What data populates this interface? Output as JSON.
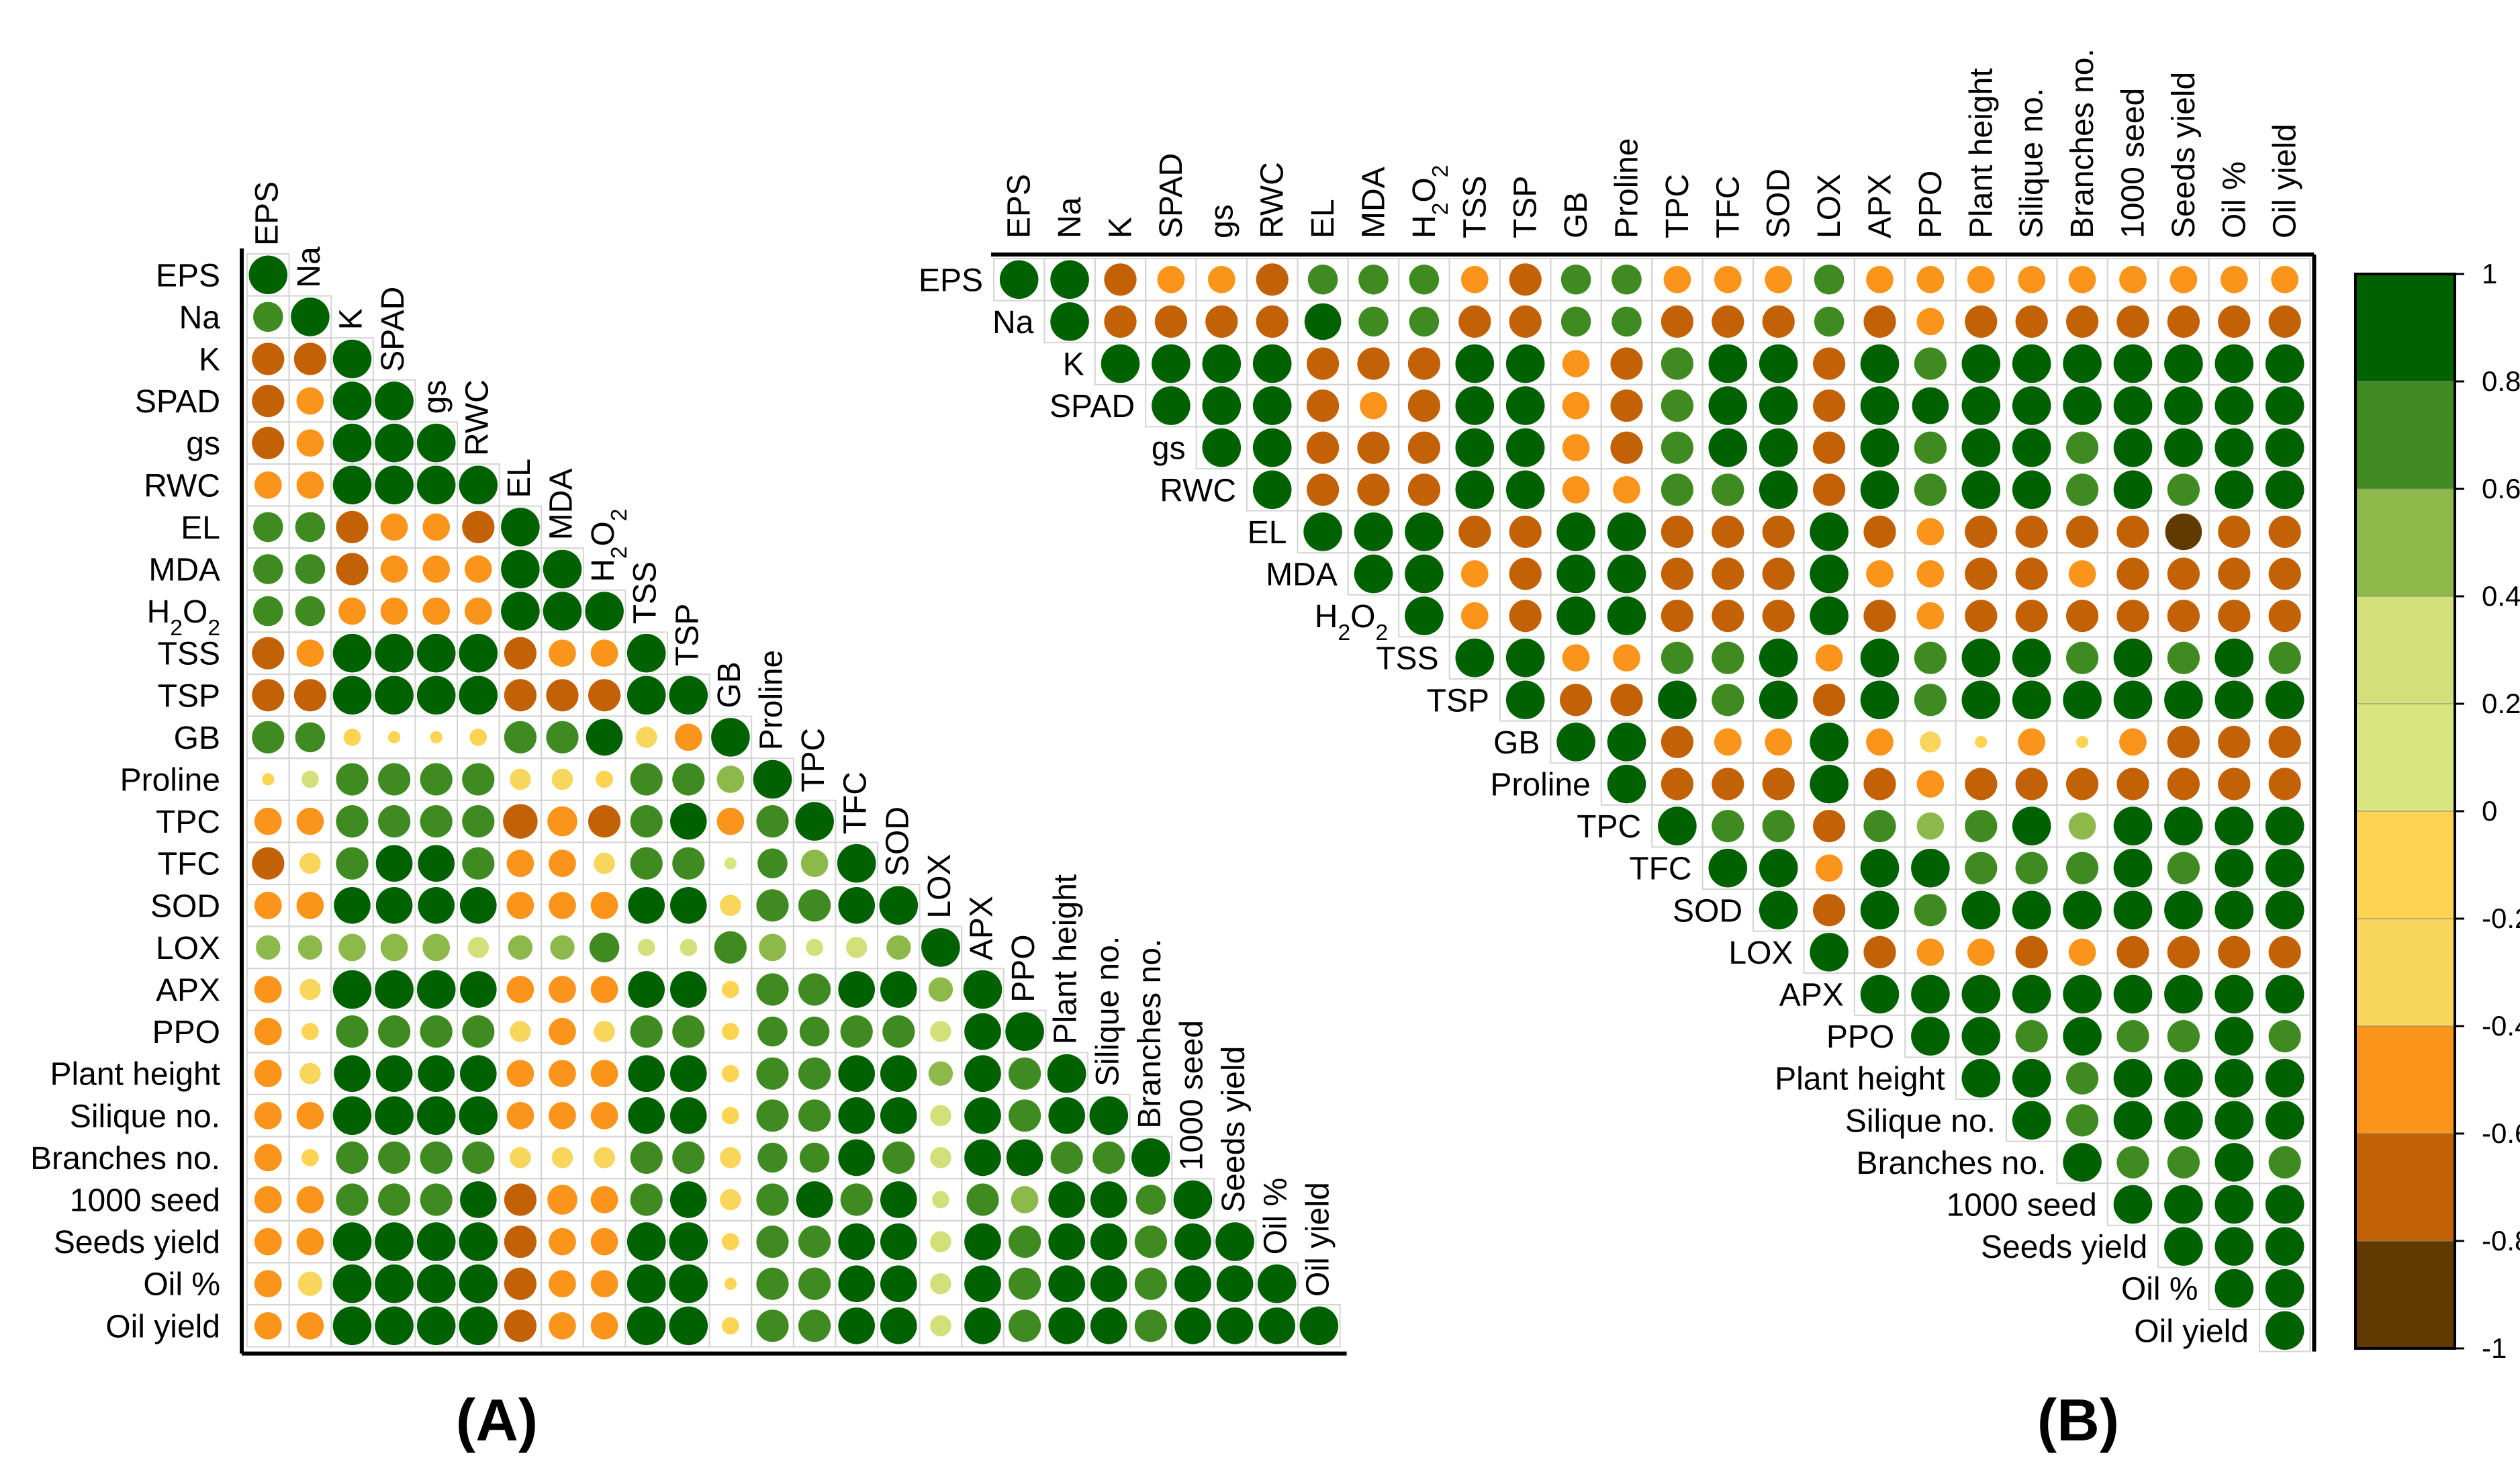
{
  "chart_data": [
    {
      "type": "heatmap",
      "subtype": "correlation-circle-lower-triangle",
      "panel": "(A)",
      "variables": [
        "EPS",
        "Na",
        "K",
        "SPAD",
        "gs",
        "RWC",
        "EL",
        "MDA",
        "H2O2",
        "TSS",
        "TSP",
        "GB",
        "Proline",
        "TPC",
        "TFC",
        "SOD",
        "LOX",
        "APX",
        "PPO",
        "Plant height",
        "Silique no.",
        "Branches no.",
        "1000 seed",
        "Seeds yield",
        "Oil %",
        "Oil yield"
      ],
      "color_range": [
        -1,
        1
      ],
      "matrix": [
        [
          1.0
        ],
        [
          0.6,
          1.0
        ],
        [
          -0.7,
          -0.7,
          1.0
        ],
        [
          -0.7,
          -0.5,
          1.0,
          1.0
        ],
        [
          -0.7,
          -0.5,
          1.0,
          1.0,
          1.0
        ],
        [
          -0.5,
          -0.5,
          1.0,
          1.0,
          1.0,
          1.0
        ],
        [
          0.6,
          0.6,
          -0.7,
          -0.5,
          -0.5,
          -0.7,
          1.0
        ],
        [
          0.6,
          0.6,
          -0.7,
          -0.5,
          -0.5,
          -0.5,
          1.0,
          1.0
        ],
        [
          0.6,
          0.6,
          -0.5,
          -0.5,
          -0.5,
          -0.5,
          1.0,
          1.0,
          1.0
        ],
        [
          -0.7,
          -0.5,
          1.0,
          1.0,
          1.0,
          1.0,
          -0.7,
          -0.5,
          -0.5,
          1.0
        ],
        [
          -0.7,
          -0.7,
          1.0,
          1.0,
          1.0,
          1.0,
          -0.7,
          -0.7,
          -0.7,
          1.0,
          1.0
        ],
        [
          0.7,
          0.6,
          -0.2,
          -0.1,
          -0.1,
          -0.2,
          0.7,
          0.7,
          0.9,
          -0.3,
          -0.5,
          1.0
        ],
        [
          -0.1,
          0.2,
          0.7,
          0.7,
          0.7,
          0.7,
          -0.3,
          -0.3,
          -0.2,
          0.7,
          0.7,
          0.5,
          1.0
        ],
        [
          -0.5,
          -0.5,
          0.7,
          0.7,
          0.7,
          0.7,
          -0.8,
          -0.6,
          -0.7,
          0.7,
          0.9,
          -0.5,
          0.7,
          1.0
        ],
        [
          -0.7,
          -0.3,
          0.7,
          0.9,
          0.9,
          0.7,
          -0.5,
          -0.5,
          -0.3,
          0.7,
          0.7,
          0.1,
          0.6,
          0.5,
          1.0
        ],
        [
          -0.5,
          -0.5,
          0.9,
          0.9,
          0.9,
          0.9,
          -0.5,
          -0.5,
          -0.5,
          0.9,
          0.9,
          -0.3,
          0.7,
          0.7,
          0.9,
          1.0
        ],
        [
          0.4,
          0.4,
          0.5,
          0.5,
          0.5,
          0.3,
          0.4,
          0.4,
          0.6,
          0.2,
          0.2,
          0.7,
          0.5,
          0.2,
          0.3,
          0.4,
          1.0
        ],
        [
          -0.5,
          -0.3,
          1.0,
          1.0,
          1.0,
          0.9,
          -0.5,
          -0.5,
          -0.5,
          0.9,
          0.9,
          -0.2,
          0.7,
          0.7,
          0.9,
          0.9,
          0.4,
          1.0
        ],
        [
          -0.5,
          -0.2,
          0.7,
          0.7,
          0.7,
          0.7,
          -0.3,
          -0.5,
          -0.3,
          0.7,
          0.7,
          -0.2,
          0.6,
          0.6,
          0.7,
          0.7,
          0.3,
          0.9,
          1.0
        ],
        [
          -0.5,
          -0.3,
          0.9,
          0.9,
          0.9,
          0.9,
          -0.5,
          -0.5,
          -0.5,
          0.9,
          0.9,
          -0.2,
          0.7,
          0.7,
          0.9,
          0.9,
          0.4,
          0.9,
          0.7,
          1.0
        ],
        [
          -0.5,
          -0.5,
          1.0,
          1.0,
          1.0,
          1.0,
          -0.5,
          -0.5,
          -0.5,
          0.9,
          0.9,
          -0.2,
          0.7,
          0.7,
          0.9,
          0.9,
          0.3,
          0.9,
          0.7,
          0.9,
          1.0
        ],
        [
          -0.5,
          -0.2,
          0.7,
          0.7,
          0.7,
          0.7,
          -0.3,
          -0.3,
          -0.3,
          0.7,
          0.7,
          -0.3,
          0.6,
          0.6,
          0.9,
          0.7,
          0.3,
          0.9,
          0.9,
          0.7,
          0.7,
          1.0
        ],
        [
          -0.5,
          -0.5,
          0.7,
          0.7,
          0.7,
          0.9,
          -0.7,
          -0.6,
          -0.5,
          0.7,
          0.9,
          -0.3,
          0.7,
          0.9,
          0.7,
          0.9,
          0.2,
          0.7,
          0.5,
          0.9,
          0.9,
          0.6,
          1.0
        ],
        [
          -0.5,
          -0.5,
          1.0,
          1.0,
          1.0,
          1.0,
          -0.7,
          -0.5,
          -0.5,
          1.0,
          1.0,
          -0.2,
          0.7,
          0.7,
          0.9,
          0.9,
          0.3,
          0.9,
          0.7,
          0.9,
          0.9,
          0.7,
          0.9,
          1.0
        ],
        [
          -0.5,
          -0.4,
          1.0,
          1.0,
          1.0,
          1.0,
          -0.7,
          -0.5,
          -0.5,
          1.0,
          1.0,
          -0.1,
          0.7,
          0.7,
          0.9,
          0.9,
          0.3,
          0.9,
          0.7,
          0.9,
          0.9,
          0.7,
          0.9,
          0.9,
          1.0
        ],
        [
          -0.5,
          -0.5,
          1.0,
          1.0,
          1.0,
          1.0,
          -0.7,
          -0.5,
          -0.5,
          1.0,
          1.0,
          -0.2,
          0.7,
          0.7,
          0.9,
          0.9,
          0.3,
          0.9,
          0.7,
          0.9,
          0.9,
          0.7,
          0.9,
          0.9,
          0.9,
          1.0
        ]
      ]
    },
    {
      "type": "heatmap",
      "subtype": "correlation-circle-upper-triangle",
      "panel": "(B)",
      "variables": [
        "EPS",
        "Na",
        "K",
        "SPAD",
        "gs",
        "RWC",
        "EL",
        "MDA",
        "H2O2",
        "TSS",
        "TSP",
        "GB",
        "Proline",
        "TPC",
        "TFC",
        "SOD",
        "LOX",
        "APX",
        "PPO",
        "Plant height",
        "Silique no.",
        "Branches no.",
        "1000 seed",
        "Seeds yield",
        "Oil %",
        "Oil yield"
      ],
      "color_range": [
        -1,
        1
      ],
      "matrix": [
        [
          1.0,
          1.0,
          -0.7,
          -0.5,
          -0.5,
          -0.7,
          0.6,
          0.6,
          0.6,
          -0.5,
          -0.7,
          0.6,
          0.6,
          -0.5,
          -0.5,
          -0.5,
          0.6,
          -0.5,
          -0.5,
          -0.5,
          -0.5,
          -0.5,
          -0.5,
          -0.5,
          -0.5,
          -0.5
        ],
        [
          null,
          1.0,
          -0.7,
          -0.7,
          -0.7,
          -0.7,
          0.9,
          0.6,
          0.6,
          -0.7,
          -0.7,
          0.6,
          0.6,
          -0.7,
          -0.7,
          -0.7,
          0.6,
          -0.7,
          -0.5,
          -0.7,
          -0.7,
          -0.7,
          -0.7,
          -0.7,
          -0.7,
          -0.7
        ],
        [
          null,
          null,
          1.0,
          1.0,
          1.0,
          1.0,
          -0.7,
          -0.7,
          -0.7,
          1.0,
          1.0,
          -0.5,
          -0.7,
          0.7,
          1.0,
          1.0,
          -0.7,
          1.0,
          0.7,
          1.0,
          1.0,
          1.0,
          1.0,
          1.0,
          1.0,
          1.0
        ],
        [
          null,
          null,
          null,
          1.0,
          1.0,
          1.0,
          -0.7,
          -0.5,
          -0.7,
          1.0,
          1.0,
          -0.5,
          -0.7,
          0.7,
          1.0,
          1.0,
          -0.7,
          1.0,
          0.9,
          1.0,
          1.0,
          1.0,
          1.0,
          1.0,
          1.0,
          1.0
        ],
        [
          null,
          null,
          null,
          null,
          1.0,
          1.0,
          -0.7,
          -0.7,
          -0.7,
          1.0,
          1.0,
          -0.5,
          -0.7,
          0.7,
          1.0,
          1.0,
          -0.7,
          1.0,
          0.7,
          1.0,
          1.0,
          0.7,
          1.0,
          1.0,
          1.0,
          1.0
        ],
        [
          null,
          null,
          null,
          null,
          null,
          1.0,
          -0.7,
          -0.7,
          -0.7,
          1.0,
          1.0,
          -0.5,
          -0.5,
          0.7,
          0.7,
          1.0,
          -0.7,
          1.0,
          0.7,
          1.0,
          1.0,
          0.7,
          1.0,
          0.7,
          1.0,
          1.0
        ],
        [
          null,
          null,
          null,
          null,
          null,
          null,
          1.0,
          1.0,
          1.0,
          -0.7,
          -0.7,
          1.0,
          1.0,
          -0.7,
          -0.7,
          -0.7,
          1.0,
          -0.7,
          -0.5,
          -0.7,
          -0.7,
          -0.7,
          -0.7,
          -0.9,
          -0.7,
          -0.7
        ],
        [
          null,
          null,
          null,
          null,
          null,
          null,
          null,
          1.0,
          1.0,
          -0.5,
          -0.7,
          1.0,
          1.0,
          -0.7,
          -0.7,
          -0.7,
          1.0,
          -0.5,
          -0.5,
          -0.7,
          -0.7,
          -0.5,
          -0.7,
          -0.7,
          -0.7,
          -0.7
        ],
        [
          null,
          null,
          null,
          null,
          null,
          null,
          null,
          null,
          1.0,
          -0.5,
          -0.7,
          1.0,
          1.0,
          -0.7,
          -0.7,
          -0.7,
          1.0,
          -0.7,
          -0.5,
          -0.7,
          -0.7,
          -0.7,
          -0.7,
          -0.7,
          -0.7,
          -0.7
        ],
        [
          null,
          null,
          null,
          null,
          null,
          null,
          null,
          null,
          null,
          1.0,
          1.0,
          -0.5,
          -0.5,
          0.7,
          0.7,
          1.0,
          -0.5,
          1.0,
          0.7,
          1.0,
          1.0,
          0.7,
          1.0,
          0.7,
          1.0,
          0.7
        ],
        [
          null,
          null,
          null,
          null,
          null,
          null,
          null,
          null,
          null,
          null,
          1.0,
          -0.7,
          -0.7,
          1.0,
          0.7,
          1.0,
          -0.7,
          1.0,
          0.7,
          1.0,
          1.0,
          1.0,
          1.0,
          1.0,
          1.0,
          1.0
        ],
        [
          null,
          null,
          null,
          null,
          null,
          null,
          null,
          null,
          null,
          null,
          null,
          1.0,
          1.0,
          -0.7,
          -0.5,
          -0.5,
          1.0,
          -0.5,
          -0.3,
          -0.1,
          -0.5,
          -0.1,
          -0.5,
          -0.7,
          -0.7,
          -0.7
        ],
        [
          null,
          null,
          null,
          null,
          null,
          null,
          null,
          null,
          null,
          null,
          null,
          null,
          1.0,
          -0.7,
          -0.7,
          -0.7,
          1.0,
          -0.7,
          -0.5,
          -0.7,
          -0.7,
          -0.7,
          -0.7,
          -0.7,
          -0.7,
          -0.7
        ],
        [
          null,
          null,
          null,
          null,
          null,
          null,
          null,
          null,
          null,
          null,
          null,
          null,
          null,
          1.0,
          0.7,
          0.7,
          -0.7,
          0.7,
          0.5,
          0.7,
          1.0,
          0.5,
          1.0,
          1.0,
          1.0,
          1.0
        ],
        [
          null,
          null,
          null,
          null,
          null,
          null,
          null,
          null,
          null,
          null,
          null,
          null,
          null,
          null,
          1.0,
          1.0,
          -0.5,
          1.0,
          1.0,
          0.7,
          0.7,
          0.7,
          1.0,
          0.7,
          1.0,
          1.0
        ],
        [
          null,
          null,
          null,
          null,
          null,
          null,
          null,
          null,
          null,
          null,
          null,
          null,
          null,
          null,
          null,
          1.0,
          -0.7,
          1.0,
          0.7,
          1.0,
          1.0,
          1.0,
          1.0,
          1.0,
          1.0,
          1.0
        ],
        [
          null,
          null,
          null,
          null,
          null,
          null,
          null,
          null,
          null,
          null,
          null,
          null,
          null,
          null,
          null,
          null,
          1.0,
          -0.7,
          -0.5,
          -0.5,
          -0.7,
          -0.5,
          -0.7,
          -0.7,
          -0.7,
          -0.7
        ],
        [
          null,
          null,
          null,
          null,
          null,
          null,
          null,
          null,
          null,
          null,
          null,
          null,
          null,
          null,
          null,
          null,
          null,
          1.0,
          1.0,
          1.0,
          1.0,
          1.0,
          1.0,
          1.0,
          1.0,
          1.0
        ],
        [
          null,
          null,
          null,
          null,
          null,
          null,
          null,
          null,
          null,
          null,
          null,
          null,
          null,
          null,
          null,
          null,
          null,
          null,
          1.0,
          1.0,
          0.7,
          1.0,
          0.7,
          0.7,
          1.0,
          0.7
        ],
        [
          null,
          null,
          null,
          null,
          null,
          null,
          null,
          null,
          null,
          null,
          null,
          null,
          null,
          null,
          null,
          null,
          null,
          null,
          null,
          1.0,
          1.0,
          0.7,
          1.0,
          1.0,
          1.0,
          1.0
        ],
        [
          null,
          null,
          null,
          null,
          null,
          null,
          null,
          null,
          null,
          null,
          null,
          null,
          null,
          null,
          null,
          null,
          null,
          null,
          null,
          null,
          1.0,
          0.7,
          1.0,
          1.0,
          1.0,
          1.0
        ],
        [
          null,
          null,
          null,
          null,
          null,
          null,
          null,
          null,
          null,
          null,
          null,
          null,
          null,
          null,
          null,
          null,
          null,
          null,
          null,
          null,
          null,
          1.0,
          0.7,
          0.7,
          1.0,
          0.7
        ],
        [
          null,
          null,
          null,
          null,
          null,
          null,
          null,
          null,
          null,
          null,
          null,
          null,
          null,
          null,
          null,
          null,
          null,
          null,
          null,
          null,
          null,
          null,
          1.0,
          1.0,
          1.0,
          1.0
        ],
        [
          null,
          null,
          null,
          null,
          null,
          null,
          null,
          null,
          null,
          null,
          null,
          null,
          null,
          null,
          null,
          null,
          null,
          null,
          null,
          null,
          null,
          null,
          null,
          1.0,
          1.0,
          1.0
        ],
        [
          null,
          null,
          null,
          null,
          null,
          null,
          null,
          null,
          null,
          null,
          null,
          null,
          null,
          null,
          null,
          null,
          null,
          null,
          null,
          null,
          null,
          null,
          null,
          null,
          1.0,
          1.0
        ],
        [
          null,
          null,
          null,
          null,
          null,
          null,
          null,
          null,
          null,
          null,
          null,
          null,
          null,
          null,
          null,
          null,
          null,
          null,
          null,
          null,
          null,
          null,
          null,
          null,
          null,
          1.0
        ]
      ]
    }
  ],
  "colorbar": {
    "tick_labels": [
      "1",
      "0.8",
      "0.6",
      "0.4",
      "0.2",
      "0",
      "-0.2",
      "-0.4",
      "-0.6",
      "-0.8",
      "-1"
    ],
    "bins": [
      {
        "min": 0.8,
        "max": 1.0,
        "color": "#006100"
      },
      {
        "min": 0.6,
        "max": 0.8,
        "color": "#3f8b22"
      },
      {
        "min": 0.4,
        "max": 0.6,
        "color": "#8cb94a"
      },
      {
        "min": 0.2,
        "max": 0.4,
        "color": "#d3e07a"
      },
      {
        "min": 0.0,
        "max": 0.2,
        "color": "#d9e57e"
      },
      {
        "min": -0.2,
        "max": 0.0,
        "color": "#fdd452"
      },
      {
        "min": -0.4,
        "max": -0.2,
        "color": "#f8d55b"
      },
      {
        "min": -0.6,
        "max": -0.4,
        "color": "#fa941b"
      },
      {
        "min": -0.8,
        "max": -0.6,
        "color": "#c26106"
      },
      {
        "min": -1.0,
        "max": -0.8,
        "color": "#603a01"
      }
    ]
  },
  "panel_labels": {
    "a": "(A)",
    "b": "(B)"
  }
}
